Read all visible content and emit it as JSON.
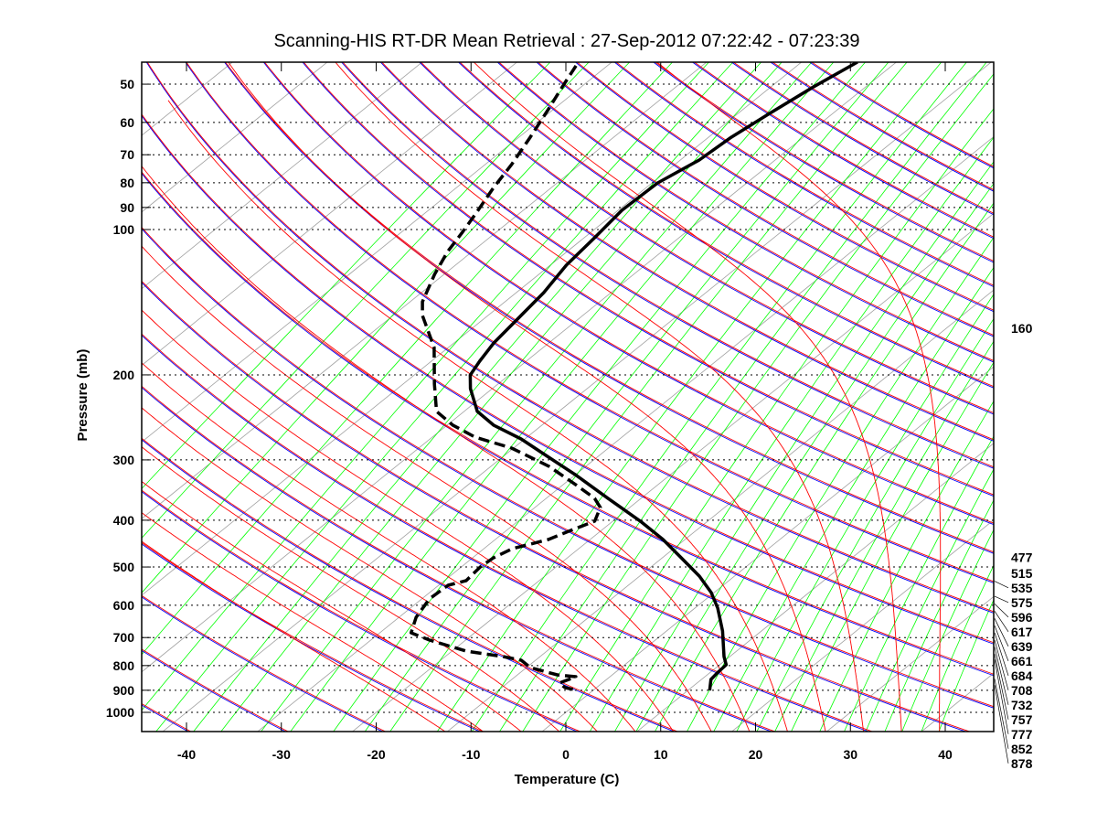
{
  "chart_data": {
    "type": "line",
    "subtype": "skew-T log-p diagram",
    "title": "Scanning-HIS RT-DR Mean Retrieval : 27-Sep-2012 07:22:42 - 07:23:39",
    "xlabel": "Temperature (C)",
    "ylabel": "Pressure (mb)",
    "xlim": [
      -45,
      45
    ],
    "ylim": [
      45,
      1100
    ],
    "yscale": "log",
    "xticks": [
      -40,
      -30,
      -20,
      -10,
      0,
      10,
      20,
      30,
      40
    ],
    "yticks": [
      50,
      60,
      70,
      80,
      90,
      100,
      200,
      300,
      400,
      500,
      600,
      700,
      800,
      900,
      1000
    ],
    "grid": "dotted horizontal lines at pressure ticks",
    "colors": {
      "dry_adiabat": "#ff0000",
      "dry_adiabat_pair": "#0000ff",
      "moist_adiabat": "#ff0000",
      "mixing_ratio": "#00ff00",
      "isotherm": "#a0a0a0",
      "profile": "#000000"
    },
    "series": [
      {
        "name": "Temperature",
        "style": "solid",
        "pressure_mb": [
          45.0,
          50.6,
          57.7,
          64.4,
          71.8,
          80.1,
          91.2,
          104.0,
          118.5,
          135.1,
          150.7,
          171.7,
          187.4,
          200.1,
          213.6,
          238.1,
          254.2,
          271.5,
          296.2,
          323.1,
          360.3,
          401.8,
          438.6,
          478.5,
          522.2,
          564.9,
          608.2,
          678.4,
          766.5,
          797.0,
          825.4,
          854.8,
          900.6
        ],
        "temperature_c": [
          -54.1,
          -55.5,
          -56.7,
          -57.6,
          -58.0,
          -59.4,
          -59.6,
          -58.9,
          -58.3,
          -57.1,
          -56.5,
          -55.8,
          -54.9,
          -54.1,
          -52.3,
          -48.6,
          -45.1,
          -40.4,
          -35.1,
          -29.8,
          -23.5,
          -17.1,
          -12.3,
          -8.0,
          -3.7,
          -0.3,
          2.4,
          5.9,
          9.4,
          10.7,
          10.8,
          11.0,
          12.3
        ]
      },
      {
        "name": "Dewpoint",
        "style": "dashed",
        "pressure_mb": [
          45.8,
          50.6,
          56.5,
          64.4,
          73.4,
          81.8,
          93.3,
          101.8,
          111.0,
          123.8,
          141.1,
          150.7,
          175.5,
          208.9,
          238.1,
          254.2,
          269.1,
          283.6,
          309.3,
          337.5,
          360.3,
          376.4,
          401.8,
          419.7,
          438.6,
          458.1,
          478.5,
          499.8,
          533.6,
          545.4,
          582.3,
          635.3,
          684.3,
          708.6,
          746.6,
          766.5,
          780.0,
          807.6,
          836.3,
          843.6,
          869.8,
          889.0,
          900.6
        ],
        "temperature_c": [
          -83.3,
          -82.0,
          -80.5,
          -78.8,
          -77.2,
          -76.1,
          -74.5,
          -73.5,
          -72.6,
          -71.0,
          -68.7,
          -66.9,
          -61.5,
          -56.7,
          -52.9,
          -49.4,
          -45.5,
          -40.2,
          -33.9,
          -28.7,
          -24.9,
          -23.1,
          -21.9,
          -23.2,
          -24.4,
          -27.0,
          -27.8,
          -28.0,
          -27.7,
          -29.0,
          -29.2,
          -28.2,
          -26.7,
          -23.8,
          -18.5,
          -13.9,
          -11.5,
          -9.6,
          -5.8,
          -3.6,
          -4.5,
          -3.3,
          -1.6
        ]
      }
    ],
    "right_labels": [
      "160",
      "477",
      "515",
      "535",
      "575",
      "596",
      "617",
      "639",
      "661",
      "684",
      "708",
      "732",
      "757",
      "777",
      "852",
      "878"
    ],
    "right_label_pressures_mb": [
      160,
      477,
      515,
      535,
      575,
      596,
      617,
      639,
      661,
      684,
      708,
      732,
      757,
      777,
      852,
      878
    ]
  }
}
